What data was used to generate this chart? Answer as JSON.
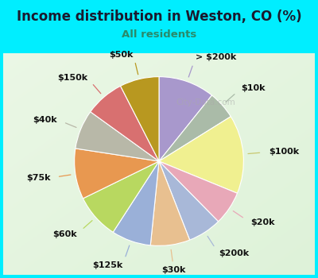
{
  "title": "Income distribution in Weston, CO (%)",
  "subtitle": "All residents",
  "title_color": "#1a1a2e",
  "subtitle_color": "#2a8a6a",
  "background_top": "#00eeff",
  "background_chart_tl": "#d8f0e8",
  "background_chart_br": "#e8f8f0",
  "labels": [
    "> $200k",
    "$10k",
    "$100k",
    "$20k",
    "$200k",
    "$30k",
    "$125k",
    "$60k",
    "$75k",
    "$40k",
    "$150k",
    "$50k"
  ],
  "values": [
    10,
    5,
    14,
    6,
    6,
    7,
    7,
    8,
    9,
    7,
    7,
    7
  ],
  "colors": [
    "#a898cc",
    "#aabba8",
    "#f0f090",
    "#e8a8b8",
    "#a8b8d8",
    "#e8c090",
    "#9ab0d8",
    "#b8d860",
    "#e89850",
    "#b8b8a8",
    "#d87070",
    "#b89820"
  ],
  "line_colors": [
    "#a898cc",
    "#aabba8",
    "#c8c870",
    "#e8a8b8",
    "#a8b8d8",
    "#e8c090",
    "#9ab0d8",
    "#b8d860",
    "#e89850",
    "#b8b8a8",
    "#d87070",
    "#b89820"
  ],
  "wedge_linewidth": 0.8,
  "wedge_edgecolor": "#ffffff",
  "label_fontsize": 8,
  "watermark": "City-Data.com"
}
